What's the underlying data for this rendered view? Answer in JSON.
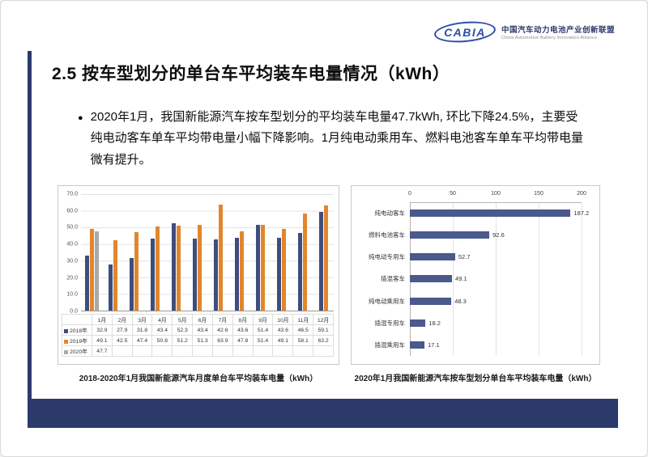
{
  "logo": {
    "brand": "CABIA",
    "org_cn": "中国汽车动力电池产业创新联盟",
    "org_en": "China Automotive Battery Innovation Alliance"
  },
  "title": "2.5 按车型划分的单台车平均装车电量情况（kWh）",
  "bullet_glyph": "●",
  "bullet_text": "2020年1月，我国新能源汽车按车型划分的平均装车电量47.7kWh, 环比下降24.5%，主要受纯电动客车单车平均带电量小幅下降影响。1月纯电动乘用车、燃料电池客车单车平均带电量微有提升。",
  "colors": {
    "navy": "#2c3a6b",
    "bar_2018": "#3f4d7e",
    "bar_2019": "#e2862c",
    "bar_2020": "#a9a9a9",
    "hbar": "#4a5a8c"
  },
  "chart_data": [
    {
      "type": "bar",
      "title": "2018-2020年1月我国新能源汽车月度单台车平均装车电量（kWh）",
      "categories": [
        "1月",
        "2月",
        "3月",
        "4月",
        "5月",
        "6月",
        "7月",
        "8月",
        "9月",
        "10月",
        "11月",
        "12月"
      ],
      "series": [
        {
          "name": "2018年",
          "color": "#3f4d7e",
          "values": [
            32.9,
            27.9,
            31.8,
            43.4,
            52.3,
            43.4,
            42.6,
            43.6,
            51.4,
            43.6,
            46.5,
            59.1
          ]
        },
        {
          "name": "2019年",
          "color": "#e2862c",
          "values": [
            49.1,
            42.5,
            47.4,
            50.8,
            51.2,
            51.3,
            63.9,
            47.8,
            51.4,
            49.1,
            58.1,
            63.2
          ]
        },
        {
          "name": "2020年",
          "color": "#a9a9a9",
          "values": [
            47.7,
            null,
            null,
            null,
            null,
            null,
            null,
            null,
            null,
            null,
            null,
            null
          ]
        }
      ],
      "ylim": [
        0,
        70
      ],
      "yticks": [
        "70.0",
        "60.0",
        "50.0",
        "40.0",
        "30.0",
        "20.0",
        "10.0",
        "0.0"
      ],
      "grid": true,
      "legend_position": "table-left"
    },
    {
      "type": "bar-horizontal",
      "title": "2020年1月我国新能源汽车按车型划分单台车平均装车电量（kWh）",
      "categories": [
        "纯电动客车",
        "燃料电池客车",
        "纯电动专用车",
        "插混客车",
        "纯电动乘用车",
        "插混专用车",
        "插混乘用车"
      ],
      "values": [
        187.2,
        92.6,
        52.7,
        49.1,
        48.3,
        18.2,
        17.1
      ],
      "xlim": [
        0,
        200
      ],
      "xticks": [
        0,
        50,
        100,
        150,
        200
      ],
      "grid": true
    }
  ]
}
